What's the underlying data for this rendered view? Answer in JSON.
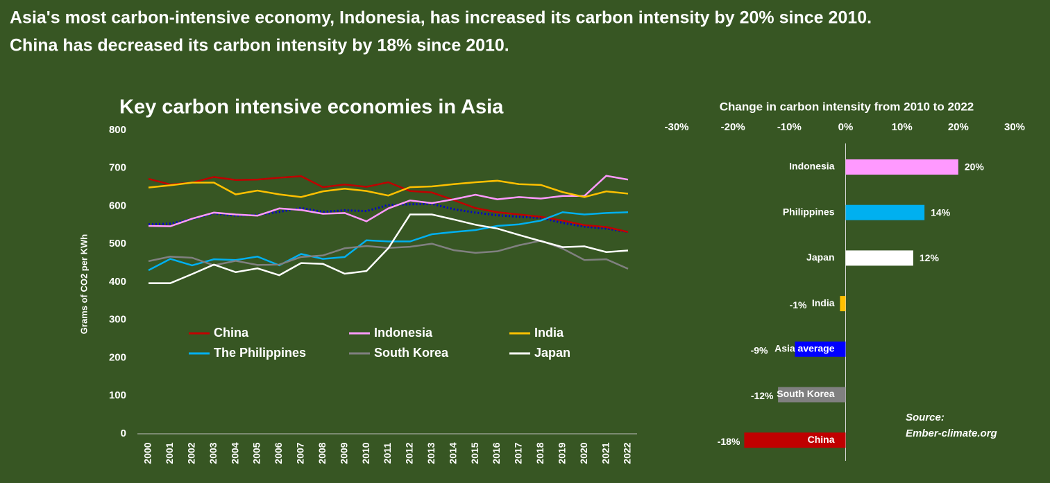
{
  "headline": [
    "Asia's most carbon-intensive economy, Indonesia, has increased its carbon intensity by 20% since 2010.",
    "China has decreased its carbon intensity by 18% since 2010."
  ],
  "chart_data": [
    {
      "type": "line",
      "title": "Key carbon intensive economies in Asia",
      "y_label": "Grams of CO2 per KWh",
      "categories": [
        "2000",
        "2001",
        "2002",
        "2003",
        "2004",
        "2005",
        "2006",
        "2007",
        "2008",
        "2009",
        "2010",
        "2011",
        "2012",
        "2013",
        "2014",
        "2015",
        "2016",
        "2017",
        "2018",
        "2019",
        "2020",
        "2021",
        "2022"
      ],
      "ylim": [
        0,
        800
      ],
      "yticks": [
        0,
        100,
        200,
        300,
        400,
        500,
        600,
        700,
        800
      ],
      "series": [
        {
          "name": "China",
          "color": "#c00000",
          "values": [
            672,
            657,
            662,
            677,
            669,
            670,
            675,
            679,
            650,
            657,
            651,
            663,
            640,
            636,
            616,
            595,
            584,
            578,
            572,
            562,
            550,
            545,
            532
          ]
        },
        {
          "name": "Indonesia",
          "color": "#ff99ff",
          "values": [
            548,
            547,
            567,
            583,
            578,
            575,
            594,
            590,
            580,
            582,
            560,
            594,
            615,
            608,
            618,
            630,
            618,
            624,
            620,
            627,
            627,
            680,
            670
          ]
        },
        {
          "name": "India",
          "color": "#ffc000",
          "values": [
            649,
            655,
            662,
            662,
            631,
            641,
            631,
            624,
            639,
            646,
            640,
            628,
            650,
            652,
            658,
            663,
            667,
            658,
            656,
            637,
            624,
            639,
            633
          ]
        },
        {
          "name": "The Philippines",
          "color": "#00b0f0",
          "values": [
            431,
            461,
            444,
            460,
            458,
            467,
            444,
            474,
            461,
            466,
            510,
            507,
            507,
            526,
            532,
            537,
            548,
            552,
            562,
            584,
            578,
            582,
            584
          ]
        },
        {
          "name": "South Korea",
          "color": "#808080",
          "values": [
            455,
            467,
            464,
            444,
            456,
            445,
            446,
            466,
            470,
            489,
            495,
            490,
            493,
            501,
            484,
            477,
            481,
            497,
            509,
            488,
            458,
            460,
            435
          ]
        },
        {
          "name": "Japan",
          "color": "#ffffff",
          "values": [
            397,
            397,
            421,
            446,
            426,
            436,
            418,
            450,
            448,
            422,
            429,
            489,
            578,
            578,
            565,
            551,
            541,
            524,
            508,
            492,
            494,
            479,
            483
          ]
        },
        {
          "color": "#0000cc",
          "dash": "dotted",
          "values": [
            552,
            554,
            566,
            581,
            575,
            577,
            585,
            595,
            585,
            589,
            587,
            603,
            605,
            606,
            592,
            583,
            576,
            572,
            569,
            556,
            546,
            541,
            532
          ]
        }
      ]
    },
    {
      "type": "hbar",
      "title": "Change in carbon intensity from 2010 to 2022",
      "categories": [
        "Indonesia",
        "Philippines",
        "Japan",
        "India",
        "Asia average",
        "South Korea",
        "China"
      ],
      "values": [
        20,
        14,
        12,
        -1,
        -9,
        -12,
        -18
      ],
      "value_labels": [
        "20%",
        "14%",
        "12%",
        "-1%",
        "-9%",
        "-12%",
        "-18%"
      ],
      "colors": [
        "#ff99ff",
        "#00b0f0",
        "#ffffff",
        "#ffc000",
        "#0000ff",
        "#808080",
        "#c00000"
      ],
      "xlim": [
        -30,
        30
      ],
      "xticks": [
        {
          "value": -30,
          "label": "-30%"
        },
        {
          "value": -20,
          "label": "-20%"
        },
        {
          "value": -10,
          "label": "-10%"
        },
        {
          "value": 0,
          "label": "0%"
        },
        {
          "value": 10,
          "label": "10%"
        },
        {
          "value": 20,
          "label": "20%"
        },
        {
          "value": 30,
          "label": "30%"
        }
      ],
      "annotations": [
        "Source:",
        "Ember-climate.org"
      ]
    }
  ]
}
